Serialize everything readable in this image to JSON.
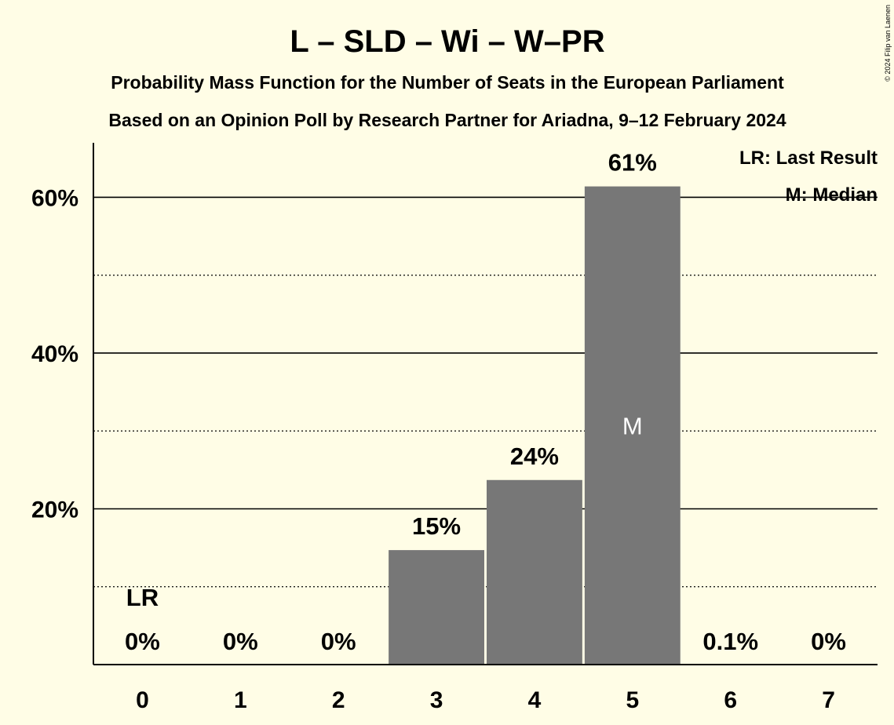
{
  "chart_data": {
    "type": "bar",
    "title": "L – SLD – Wi – W–PR",
    "subtitle_1": "Probability Mass Function for the Number of Seats in the European Parliament",
    "subtitle_2": "Based on an Opinion Poll by Research Partner for Ariadna, 9–12 February 2024",
    "copyright": "© 2024 Filip van Laenen",
    "categories": [
      "0",
      "1",
      "2",
      "3",
      "4",
      "5",
      "6",
      "7"
    ],
    "values": [
      0,
      0,
      0,
      14.7,
      23.7,
      61.4,
      0.1,
      0
    ],
    "data_labels": [
      "0%",
      "0%",
      "0%",
      "15%",
      "24%",
      "61%",
      "0.1%",
      "0%"
    ],
    "ylim": [
      0,
      67
    ],
    "y_ticks": [
      20,
      40,
      60
    ],
    "y_tick_labels": [
      "20%",
      "40%",
      "60%"
    ],
    "minor_gridlines": [
      10,
      30,
      50
    ],
    "last_result_index": 0,
    "last_result_label": "LR",
    "median_index": 5,
    "median_label": "M",
    "legend": {
      "position": "top-right",
      "items": [
        "LR: Last Result",
        "M: Median"
      ]
    },
    "colors": {
      "bar": "#777777",
      "background": "#fffde6",
      "text": "#000000"
    }
  }
}
